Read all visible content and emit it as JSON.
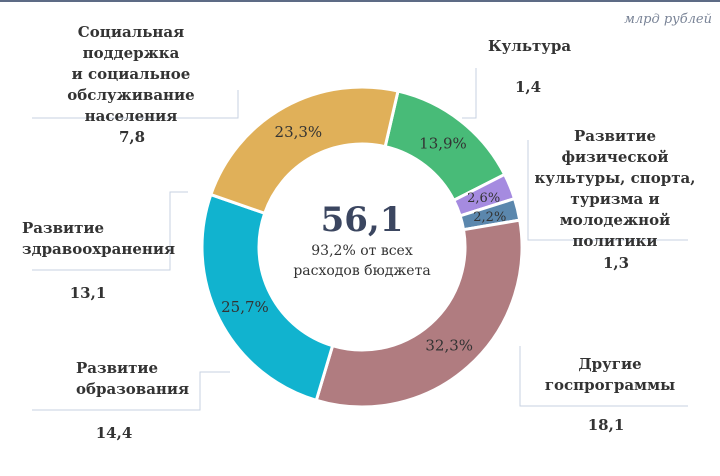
{
  "unit_label": "млрд рублей",
  "center": {
    "total": "56,1",
    "line1": "93,2% от всех",
    "line2": "расходов бюджета"
  },
  "chart_data": {
    "type": "pie",
    "variant": "donut",
    "title": "",
    "total": 56.1,
    "slices": [
      {
        "label": "Социальная поддержка и социальное обслуживание населения",
        "value": 7.8,
        "value_label": "7,8",
        "percent": 13.9,
        "percent_label": "13,9%",
        "color": "#48bb78"
      },
      {
        "label": "Культура",
        "value": 1.4,
        "value_label": "1,4",
        "percent": 2.6,
        "percent_label": "2,6%",
        "color": "#a58be0"
      },
      {
        "label": "Развитие физической культуры, спорта, туризма и молодежной политики",
        "value": 1.3,
        "value_label": "1,3",
        "percent": 2.2,
        "percent_label": "2,2%",
        "color": "#5b87ad"
      },
      {
        "label": "Другие госпрограммы",
        "value": 18.1,
        "value_label": "18,1",
        "percent": 32.3,
        "percent_label": "32,3%",
        "color": "#b07c80"
      },
      {
        "label": "Развитие образования",
        "value": 14.4,
        "value_label": "14,4",
        "percent": 25.7,
        "percent_label": "25,7%",
        "color": "#11b3cf"
      },
      {
        "label": "Развитие здравоохранения",
        "value": 13.1,
        "value_label": "13,1",
        "percent": 23.3,
        "percent_label": "23,3%",
        "color": "#e0b059"
      }
    ]
  },
  "labels": {
    "social_line1": "Социальная поддержка",
    "social_line2": "и социальное",
    "social_line3": "обслуживание",
    "social_line4": "населения",
    "culture": "Культура",
    "sport_line1": "Развитие физической",
    "sport_line2": "культуры, спорта,",
    "sport_line3": "туризма и",
    "sport_line4": "молодежной",
    "sport_line5": "политики",
    "other_line1": "Другие",
    "other_line2": "госпрограммы",
    "edu_line1": "Развитие",
    "edu_line2": "образования",
    "health_line1": "Развитие",
    "health_line2": "здравоохранения"
  }
}
